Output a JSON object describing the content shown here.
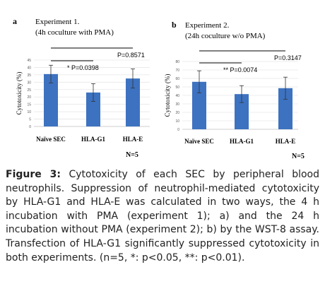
{
  "chart_data": [
    {
      "type": "bar",
      "panel_letter": "a",
      "title_line1": "Experiment 1.",
      "title_line2": "(4h coculture with PMA)",
      "ylabel": "Cytotoxicity (%)",
      "categories": [
        "Naïve SEC",
        "HLA-G1",
        "HLA-E"
      ],
      "values": [
        35.5,
        23,
        32.5
      ],
      "errors": [
        6,
        6,
        6.5
      ],
      "ylim": [
        0,
        45
      ],
      "yticks": [
        0,
        5,
        10,
        15,
        20,
        25,
        30,
        35,
        40,
        45
      ],
      "bar_color": "#3d72c0",
      "grid": true,
      "annotations": [
        {
          "text": "* P=0.0398",
          "between": [
            0,
            1
          ]
        },
        {
          "text": "P=0.8571",
          "between": [
            0,
            2
          ]
        }
      ],
      "n_label": "N=5"
    },
    {
      "type": "bar",
      "panel_letter": "b",
      "title_line1": "Experiment 2.",
      "title_line2": "(24h coculture w/o PMA)",
      "ylabel": "Cytotoxicity (%)",
      "categories": [
        "Naïve SEC",
        "HLA-G1",
        "HLA-E"
      ],
      "values": [
        56,
        41.5,
        48.5
      ],
      "errors": [
        13,
        10,
        13
      ],
      "ylim": [
        0,
        80
      ],
      "yticks": [
        0,
        10,
        20,
        30,
        40,
        50,
        60,
        70,
        80
      ],
      "bar_color": "#3d72c0",
      "grid": true,
      "annotations": [
        {
          "text": "** P=0.0074",
          "between": [
            0,
            1
          ]
        },
        {
          "text": "P=0.3147",
          "between": [
            0,
            2
          ]
        }
      ],
      "n_label": "N=5"
    }
  ],
  "caption": {
    "label": "Figure 3:",
    "text": " Cytotoxicity of each SEC by peripheral blood neutrophils. Suppression of neutrophil-mediated cytotoxicity by HLA-G1 and HLA-E was calculated in two ways, the 4 h incubation with PMA (experiment 1); a) and the 24 h incubation without PMA (experiment 2); b) by the WST-8 assay. Transfection of HLA-G1 significantly suppressed cytotoxicity in both experiments. (n=5, *: p<0.05, **: p<0.01)."
  }
}
